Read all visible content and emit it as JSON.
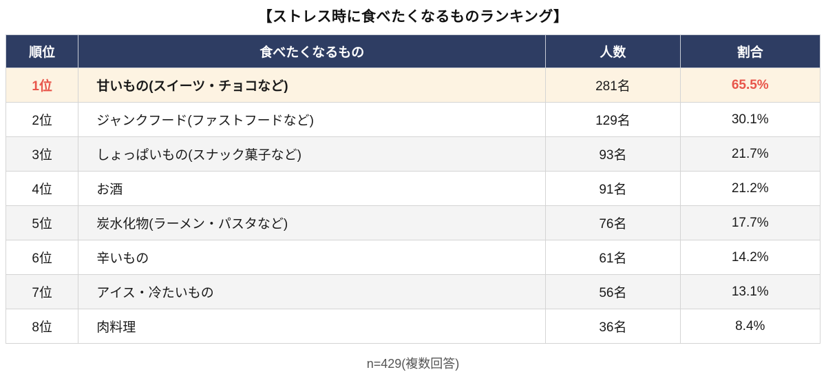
{
  "title": "【ストレス時に食べたくなるものランキング】",
  "footer_note": "n=429(複数回答)",
  "colors": {
    "header_bg": "#2e3d63",
    "header_text": "#ffffff",
    "highlight_bg": "#fdf3e2",
    "highlight_accent": "#e8554a",
    "alt_row_bg": "#f4f4f4",
    "border": "#d4d4d4"
  },
  "table": {
    "headers": [
      "順位",
      "食べたくなるもの",
      "人数",
      "割合"
    ],
    "rows": [
      {
        "rank": "1位",
        "item": "甘いもの(スイーツ・チョコなど)",
        "count": "281名",
        "percent": "65.5%",
        "highlight": true
      },
      {
        "rank": "2位",
        "item": "ジャンクフード(ファストフードなど)",
        "count": "129名",
        "percent": "30.1%",
        "highlight": false
      },
      {
        "rank": "3位",
        "item": "しょっぱいもの(スナック菓子など)",
        "count": "93名",
        "percent": "21.7%",
        "highlight": false
      },
      {
        "rank": "4位",
        "item": "お酒",
        "count": "91名",
        "percent": "21.2%",
        "highlight": false
      },
      {
        "rank": "5位",
        "item": "炭水化物(ラーメン・パスタなど)",
        "count": "76名",
        "percent": "17.7%",
        "highlight": false
      },
      {
        "rank": "6位",
        "item": "辛いもの",
        "count": "61名",
        "percent": "14.2%",
        "highlight": false
      },
      {
        "rank": "7位",
        "item": "アイス・冷たいもの",
        "count": "56名",
        "percent": "13.1%",
        "highlight": false
      },
      {
        "rank": "8位",
        "item": "肉料理",
        "count": "36名",
        "percent": "8.4%",
        "highlight": false
      }
    ]
  },
  "chart_data": {
    "type": "table",
    "title": "【ストレス時に食べたくなるものランキング】",
    "columns": [
      "順位",
      "食べたくなるもの",
      "人数",
      "割合"
    ],
    "rows": [
      {
        "rank": 1,
        "item": "甘いもの(スイーツ・チョコなど)",
        "count": 281,
        "percent": 65.5
      },
      {
        "rank": 2,
        "item": "ジャンクフード(ファストフードなど)",
        "count": 129,
        "percent": 30.1
      },
      {
        "rank": 3,
        "item": "しょっぱいもの(スナック菓子など)",
        "count": 93,
        "percent": 21.7
      },
      {
        "rank": 4,
        "item": "お酒",
        "count": 91,
        "percent": 21.2
      },
      {
        "rank": 5,
        "item": "炭水化物(ラーメン・パスタなど)",
        "count": 76,
        "percent": 17.7
      },
      {
        "rank": 6,
        "item": "辛いもの",
        "count": 61,
        "percent": 14.2
      },
      {
        "rank": 7,
        "item": "アイス・冷たいもの",
        "count": 56,
        "percent": 13.1
      },
      {
        "rank": 8,
        "item": "肉料理",
        "count": 36,
        "percent": 8.4
      }
    ],
    "sample_size": 429,
    "note": "n=429(複数回答)",
    "legend_position": "none",
    "grid": true
  }
}
